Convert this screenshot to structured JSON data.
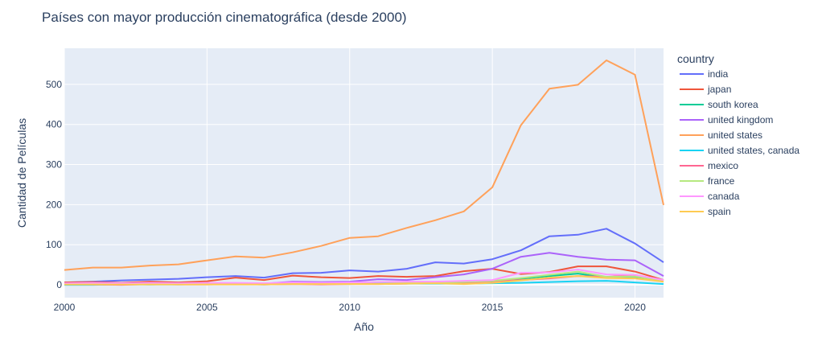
{
  "chart_data": {
    "type": "line",
    "title": "Países con mayor producción cinematográfica (desde 2000)",
    "xlabel": "Año",
    "ylabel": "Cantidad de Películas",
    "xlim": [
      2000,
      2021
    ],
    "ylim": [
      -32,
      590
    ],
    "xticks": [
      2000,
      2005,
      2010,
      2015,
      2020
    ],
    "yticks": [
      0,
      100,
      200,
      300,
      400,
      500
    ],
    "grid": true,
    "legend_title": "country",
    "legend_position": "right",
    "x": [
      2000,
      2001,
      2002,
      2003,
      2004,
      2005,
      2006,
      2007,
      2008,
      2009,
      2010,
      2011,
      2012,
      2013,
      2014,
      2015,
      2016,
      2017,
      2018,
      2019,
      2020,
      2021
    ],
    "series": [
      {
        "name": "india",
        "color": "#636efa",
        "values": [
          6,
          8,
          11,
          13,
          15,
          19,
          22,
          18,
          29,
          30,
          36,
          33,
          40,
          56,
          53,
          64,
          86,
          121,
          125,
          140,
          103,
          56
        ]
      },
      {
        "name": "japan",
        "color": "#ef553b",
        "values": [
          6,
          7,
          5,
          8,
          6,
          9,
          18,
          12,
          23,
          19,
          17,
          22,
          20,
          22,
          34,
          40,
          27,
          32,
          46,
          46,
          33,
          12
        ]
      },
      {
        "name": "south korea",
        "color": "#00cc96",
        "values": [
          1,
          1,
          2,
          1,
          2,
          3,
          3,
          2,
          3,
          3,
          3,
          4,
          5,
          4,
          5,
          8,
          15,
          22,
          28,
          18,
          20,
          8
        ]
      },
      {
        "name": "united kingdom",
        "color": "#ab63fa",
        "values": [
          3,
          3,
          3,
          4,
          4,
          4,
          3,
          3,
          8,
          7,
          8,
          14,
          12,
          19,
          26,
          40,
          70,
          80,
          70,
          63,
          61,
          22
        ]
      },
      {
        "name": "united states",
        "color": "#ffa15a",
        "values": [
          37,
          43,
          43,
          48,
          51,
          61,
          71,
          68,
          81,
          97,
          117,
          121,
          142,
          161,
          183,
          243,
          398,
          489,
          499,
          560,
          524,
          199
        ]
      },
      {
        "name": "united states, canada",
        "color": "#19d3f3",
        "values": [
          0,
          0,
          1,
          1,
          1,
          2,
          2,
          1,
          2,
          2,
          2,
          3,
          3,
          3,
          3,
          4,
          5,
          7,
          9,
          10,
          6,
          2
        ]
      },
      {
        "name": "mexico",
        "color": "#ff6692",
        "values": [
          2,
          1,
          0,
          2,
          1,
          1,
          2,
          1,
          2,
          1,
          2,
          2,
          3,
          5,
          4,
          9,
          12,
          16,
          22,
          20,
          24,
          10
        ]
      },
      {
        "name": "france",
        "color": "#b6e880",
        "values": [
          2,
          2,
          2,
          3,
          3,
          3,
          3,
          3,
          5,
          5,
          5,
          7,
          6,
          6,
          7,
          10,
          17,
          25,
          33,
          20,
          21,
          10
        ]
      },
      {
        "name": "canada",
        "color": "#ff97ff",
        "values": [
          4,
          5,
          4,
          5,
          4,
          5,
          5,
          4,
          6,
          5,
          6,
          7,
          8,
          8,
          10,
          12,
          30,
          31,
          38,
          26,
          25,
          12
        ]
      },
      {
        "name": "spain",
        "color": "#fecb52",
        "values": [
          1,
          1,
          1,
          1,
          1,
          1,
          1,
          1,
          2,
          2,
          2,
          2,
          3,
          4,
          2,
          5,
          11,
          18,
          22,
          17,
          16,
          8
        ]
      }
    ]
  }
}
